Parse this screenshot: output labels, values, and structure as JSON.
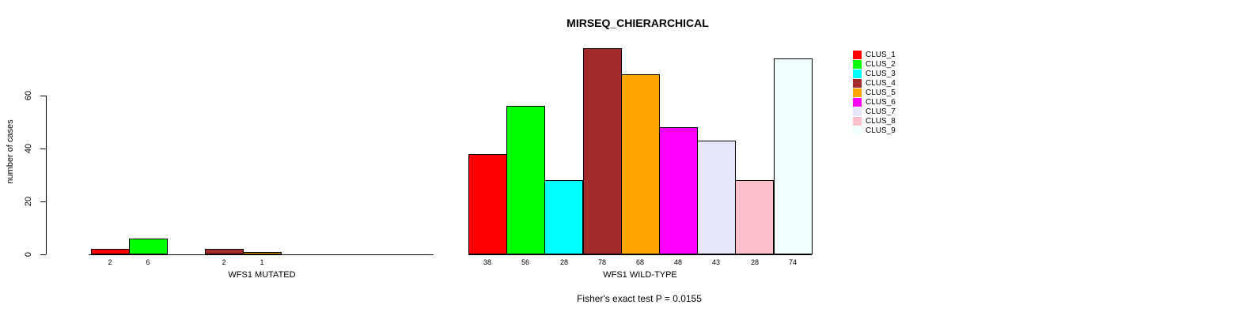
{
  "chart_data": {
    "type": "bar",
    "title": "MIRSEQ_CHIERARCHICAL",
    "ylabel": "number of cases",
    "ylim": [
      0,
      60
    ],
    "yticks": [
      0,
      20,
      40,
      60
    ],
    "grid": false,
    "legend_position": "right",
    "categories": [
      "CLUS_1",
      "CLUS_2",
      "CLUS_3",
      "CLUS_4",
      "CLUS_5",
      "CLUS_6",
      "CLUS_7",
      "CLUS_8",
      "CLUS_9"
    ],
    "colors": [
      "#FF0000",
      "#00FF00",
      "#00FFFF",
      "#A52A2A",
      "#FFA500",
      "#FF00FF",
      "#E6E6FA",
      "#FFC0CB",
      "#F0FFFF"
    ],
    "groups": [
      {
        "label": "WFS1 MUTATED",
        "values": [
          2,
          6,
          0,
          2,
          1,
          0,
          0,
          0,
          0
        ]
      },
      {
        "label": "WFS1 WILD-TYPE",
        "values": [
          38,
          56,
          28,
          78,
          68,
          48,
          43,
          28,
          74
        ]
      }
    ],
    "annotation": "Fisher's exact test P = 0.0155",
    "legend": {
      "entries": [
        {
          "label": "CLUS_1",
          "color": "#FF0000"
        },
        {
          "label": "CLUS_2",
          "color": "#00FF00"
        },
        {
          "label": "CLUS_3",
          "color": "#00FFFF"
        },
        {
          "label": "CLUS_4",
          "color": "#A52A2A"
        },
        {
          "label": "CLUS_5",
          "color": "#FFA500"
        },
        {
          "label": "CLUS_6",
          "color": "#FF00FF"
        },
        {
          "label": "CLUS_7",
          "color": "#E6E6FA"
        },
        {
          "label": "CLUS_8",
          "color": "#FFC0CB"
        },
        {
          "label": "CLUS_9",
          "color": "#F0FFFF"
        }
      ]
    }
  }
}
